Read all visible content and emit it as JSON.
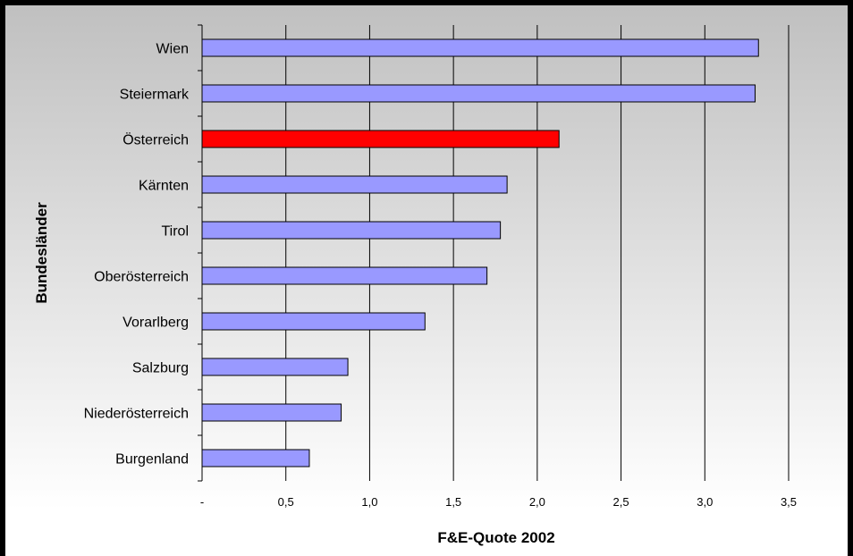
{
  "chart_data": {
    "type": "bar",
    "orientation": "horizontal",
    "categories": [
      "Wien",
      "Steiermark",
      "Österreich",
      "Kärnten",
      "Tirol",
      "Oberösterreich",
      "Vorarlberg",
      "Salzburg",
      "Niederösterreich",
      "Burgenland"
    ],
    "values": [
      3.32,
      3.3,
      2.13,
      1.82,
      1.78,
      1.7,
      1.33,
      0.87,
      0.83,
      0.64
    ],
    "highlight_category": "Österreich",
    "xlabel": "F&E-Quote 2002",
    "ylabel": "Bundesländer",
    "xlim": [
      0,
      3.5
    ],
    "x_ticks": [
      "-",
      "0,5",
      "1,0",
      "1,5",
      "2,0",
      "2,5",
      "3,0",
      "3,5"
    ],
    "grid": "vertical",
    "legend": "none",
    "colors": {
      "bar": "#9999ff",
      "highlight": "#ff0000",
      "bar_edge": "#000000",
      "plot_gradient_top": "#c0c0c0",
      "plot_gradient_bottom": "#ffffff"
    }
  }
}
